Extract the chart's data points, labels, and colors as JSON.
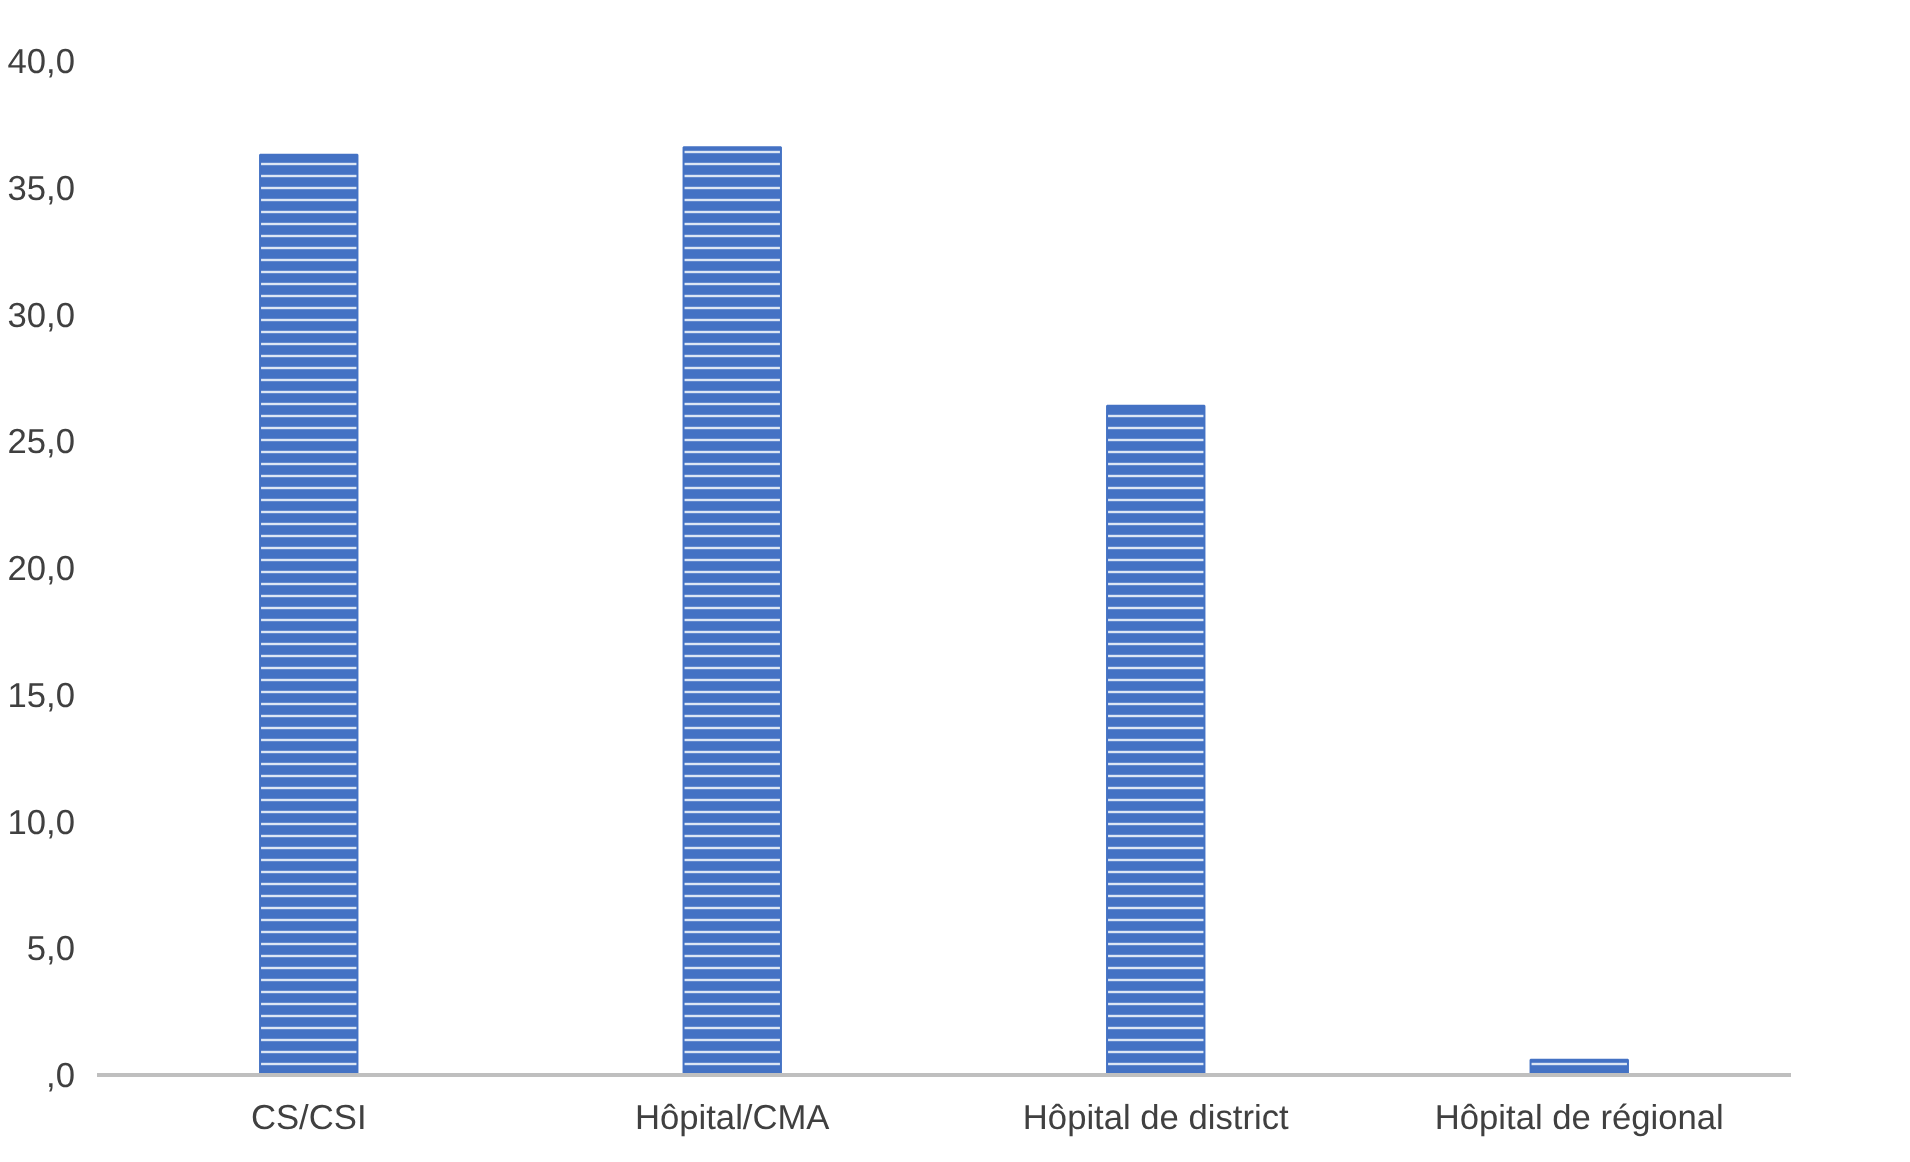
{
  "chart_data": {
    "type": "bar",
    "categories": [
      "CS/CSI",
      "Hôpital/CMA",
      "Hôpital de district",
      "Hôpital de régional"
    ],
    "values": [
      36.3,
      36.6,
      26.4,
      0.6
    ],
    "color": "#4472c4",
    "ylim": [
      0,
      40
    ],
    "yticks": [
      {
        "value": 0,
        "label": ",0"
      },
      {
        "value": 5,
        "label": "5,0"
      },
      {
        "value": 10,
        "label": "10,0"
      },
      {
        "value": 15,
        "label": "15,0"
      },
      {
        "value": 20,
        "label": "20,0"
      },
      {
        "value": 25,
        "label": "25,0"
      },
      {
        "value": 30,
        "label": "30,0"
      },
      {
        "value": 35,
        "label": "35,0"
      },
      {
        "value": 40,
        "label": "40,0"
      }
    ],
    "grid": false
  }
}
